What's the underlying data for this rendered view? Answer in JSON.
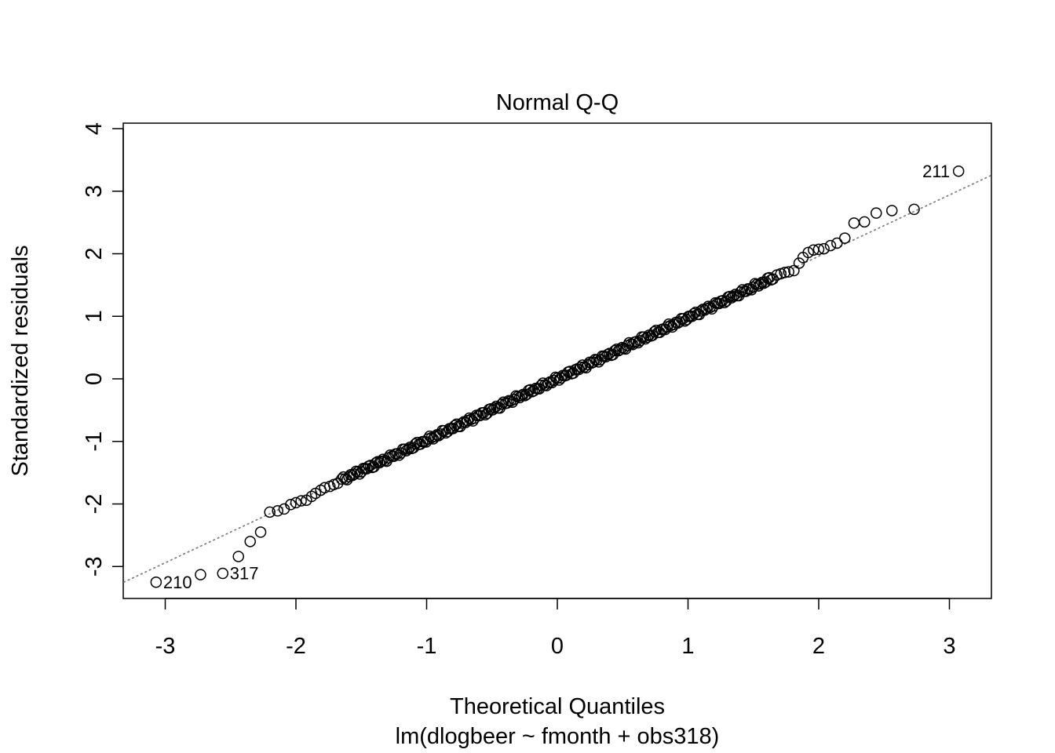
{
  "chart_data": {
    "type": "scatter",
    "title": "Normal Q-Q",
    "xlabel": "Theoretical Quantiles",
    "sublabel": "lm(dlogbeer ~ fmonth + obs318)",
    "ylabel": "Standardized residuals",
    "xlim": [
      -3.32,
      3.32
    ],
    "ylim": [
      -3.5,
      4.05
    ],
    "xticks": [
      "-3",
      "-2",
      "-1",
      "0",
      "1",
      "2",
      "3"
    ],
    "yticks": [
      "-3",
      "-2",
      "-1",
      "0",
      "1",
      "2",
      "3",
      "4"
    ],
    "reference_line": {
      "style": "dotted",
      "color": "#777777",
      "intercept": 0.0,
      "slope": 0.98
    },
    "extreme_points": [
      {
        "label": "211",
        "x": 3.07,
        "y": 3.32
      },
      {
        "label": "210",
        "x": -3.07,
        "y": -3.25
      },
      {
        "label": "317",
        "x": -2.56,
        "y": -3.11
      }
    ],
    "points": [
      [
        3.07,
        3.32
      ],
      [
        2.73,
        2.71
      ],
      [
        2.56,
        2.69
      ],
      [
        2.44,
        2.65
      ],
      [
        2.35,
        2.51
      ],
      [
        2.27,
        2.49
      ],
      [
        2.2,
        2.25
      ],
      [
        2.14,
        2.17
      ],
      [
        2.09,
        2.13
      ],
      [
        2.04,
        2.08
      ],
      [
        2.0,
        2.07
      ],
      [
        1.96,
        2.06
      ],
      [
        1.92,
        2.02
      ],
      [
        1.88,
        1.94
      ],
      [
        1.85,
        1.85
      ],
      [
        1.81,
        1.73
      ],
      [
        1.77,
        1.71
      ],
      [
        1.74,
        1.7
      ],
      [
        1.71,
        1.68
      ],
      [
        1.68,
        1.66
      ],
      [
        -2.2,
        -2.13
      ],
      [
        -2.14,
        -2.11
      ],
      [
        -2.09,
        -2.08
      ],
      [
        -2.04,
        -2.01
      ],
      [
        -2.0,
        -1.98
      ],
      [
        -1.96,
        -1.95
      ],
      [
        -1.92,
        -1.94
      ],
      [
        -1.88,
        -1.88
      ],
      [
        -1.85,
        -1.83
      ],
      [
        -1.81,
        -1.78
      ],
      [
        -1.78,
        -1.74
      ],
      [
        -1.74,
        -1.72
      ],
      [
        -1.71,
        -1.69
      ],
      [
        -1.68,
        -1.67
      ],
      [
        -2.27,
        -2.45
      ],
      [
        -2.35,
        -2.6
      ],
      [
        -2.44,
        -2.84
      ],
      [
        -2.56,
        -3.11
      ],
      [
        -2.73,
        -3.13
      ],
      [
        -3.07,
        -3.25
      ]
    ],
    "series_note": "dense run of points following the reference line for theoretical quantiles between -1.65 and 1.65"
  }
}
